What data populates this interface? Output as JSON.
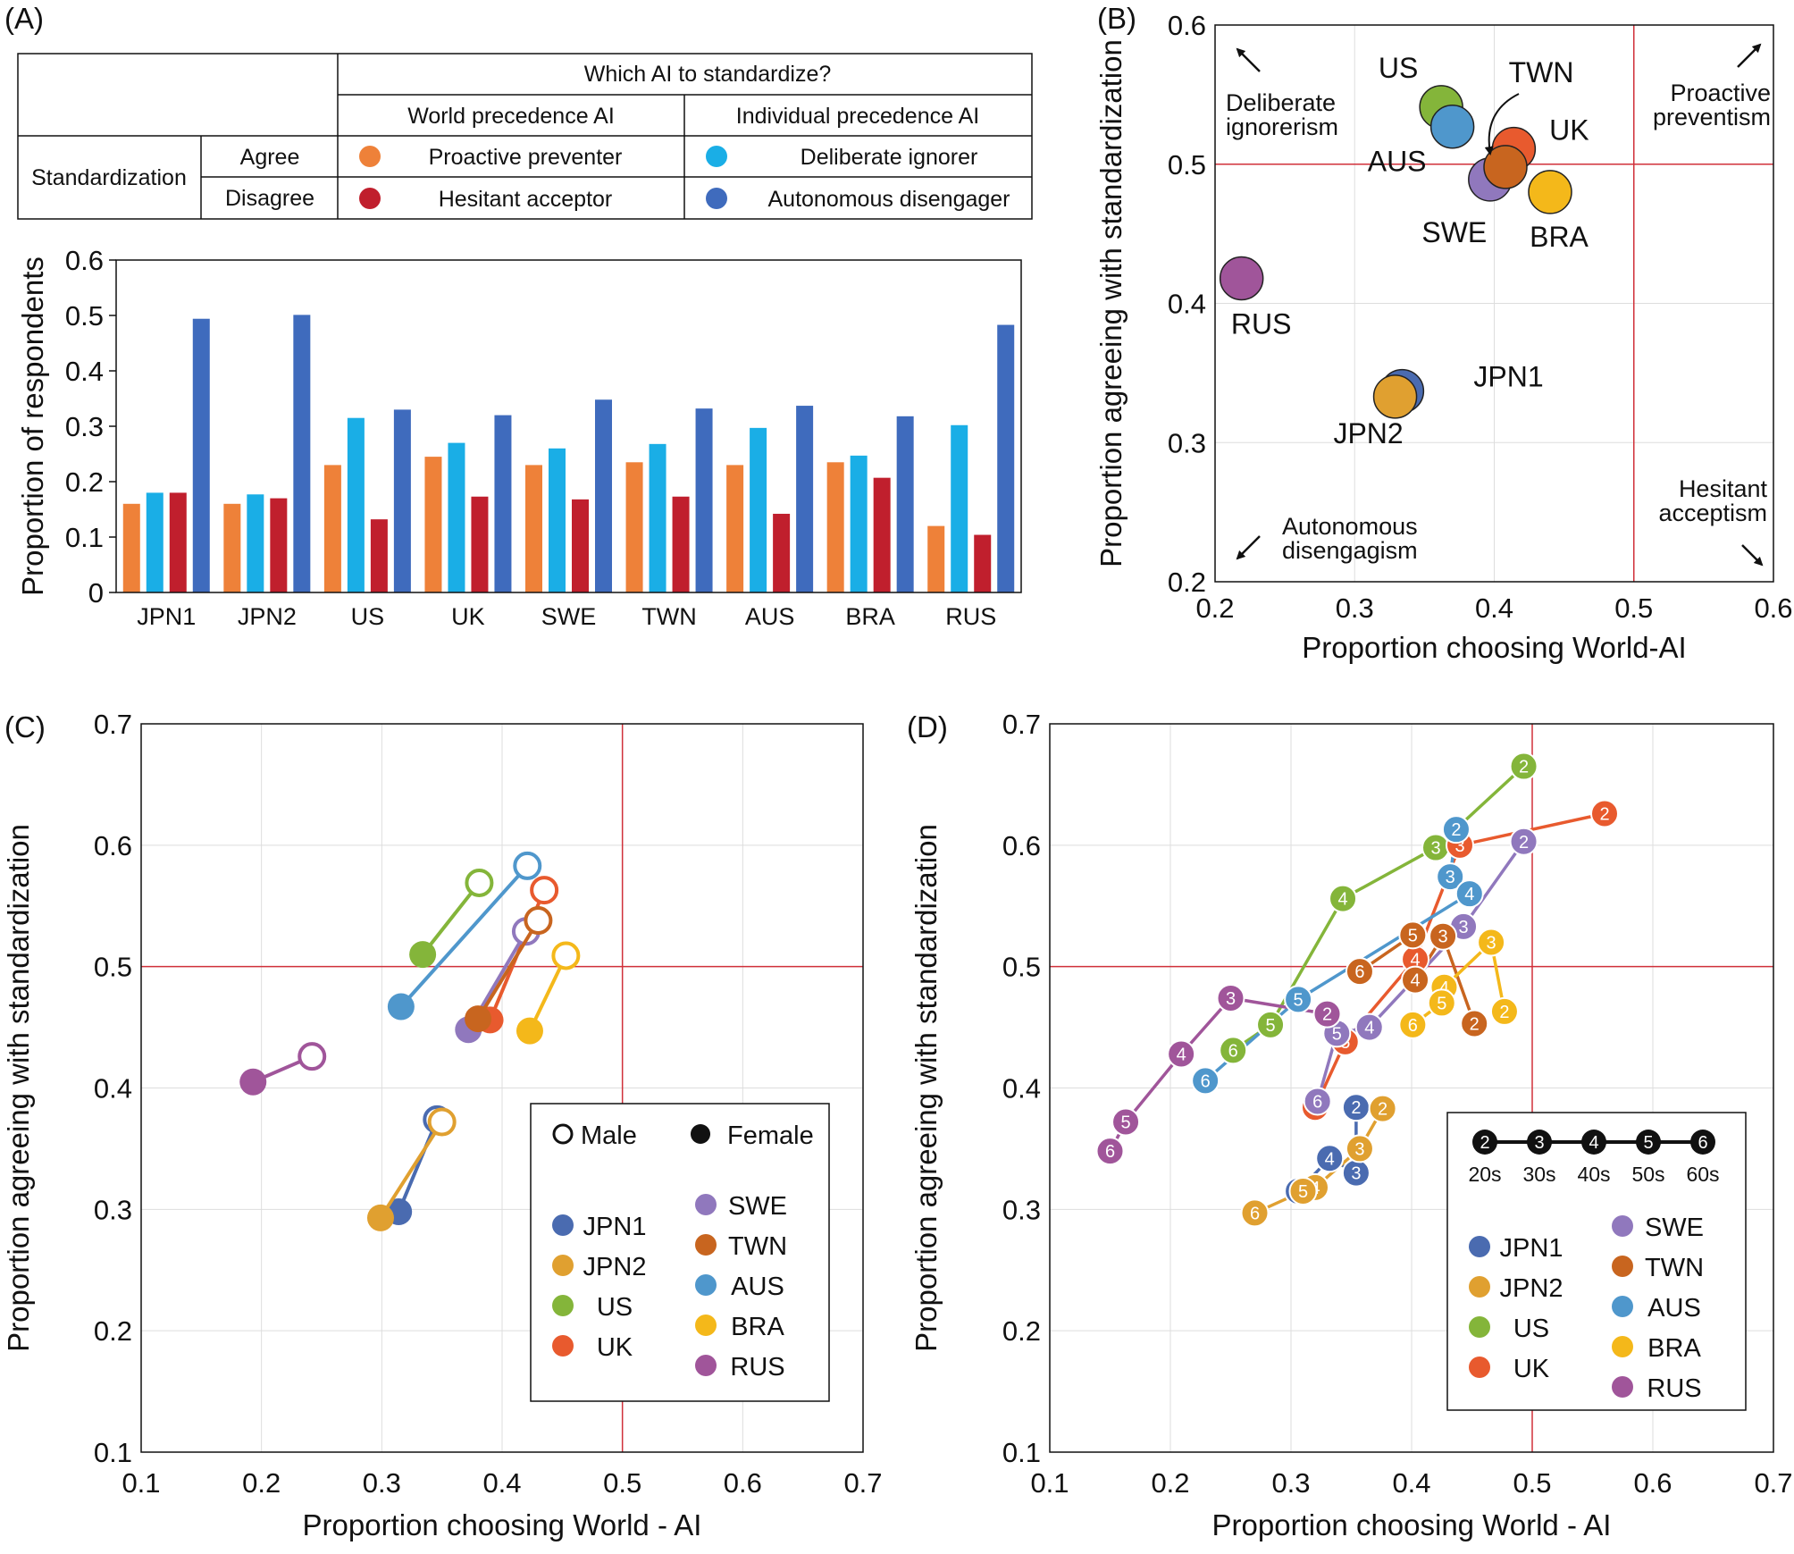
{
  "colors": {
    "JPN1": "#4a6bb0",
    "JPN2": "#e0a030",
    "US": "#84b53a",
    "UK": "#e85a2e",
    "SWE": "#9078bd",
    "TWN": "#c8651f",
    "AUS": "#4f97cc",
    "BRA": "#f4b81a",
    "RUS": "#a0559a",
    "proactive": "#ee8139",
    "deliberate": "#1aaee6",
    "hesitant": "#c01f2d",
    "autonomous": "#3f6bbd",
    "refline": "#d0303a"
  },
  "panel_labels": [
    "(A)",
    "(B)",
    "(C)",
    "(D)"
  ],
  "table": {
    "top_header": "Which AI to standardize?",
    "col_world": "World precedence AI",
    "col_individual": "Individual precedence AI",
    "row_group": "Standardization",
    "row_agree": "Agree",
    "row_disagree": "Disagree",
    "cells": {
      "proactive": "Proactive preventer",
      "deliberate": "Deliberate ignorer",
      "hesitant": "Hesitant acceptor",
      "autonomous": "Autonomous disengager"
    }
  },
  "chart_data": [
    {
      "panel": "A",
      "type": "bar",
      "ylabel": "Proportion of respondents",
      "xlabel": "",
      "ylim": [
        0,
        0.6
      ],
      "yticks": [
        "0",
        "0.1",
        "0.2",
        "0.3",
        "0.4",
        "0.5",
        "0.6"
      ],
      "categories": [
        "JPN1",
        "JPN2",
        "US",
        "UK",
        "SWE",
        "TWN",
        "AUS",
        "BRA",
        "RUS"
      ],
      "series": [
        {
          "name": "Proactive preventer",
          "color_key": "proactive",
          "values": [
            0.16,
            0.16,
            0.23,
            0.245,
            0.23,
            0.235,
            0.23,
            0.235,
            0.12
          ]
        },
        {
          "name": "Deliberate ignorer",
          "color_key": "deliberate",
          "values": [
            0.18,
            0.177,
            0.315,
            0.27,
            0.26,
            0.268,
            0.297,
            0.247,
            0.302
          ]
        },
        {
          "name": "Hesitant acceptor",
          "color_key": "hesitant",
          "values": [
            0.18,
            0.17,
            0.132,
            0.173,
            0.168,
            0.173,
            0.142,
            0.207,
            0.104
          ]
        },
        {
          "name": "Autonomous disengager",
          "color_key": "autonomous",
          "values": [
            0.494,
            0.501,
            0.33,
            0.32,
            0.348,
            0.332,
            0.337,
            0.318,
            0.483
          ]
        }
      ]
    },
    {
      "panel": "B",
      "type": "scatter",
      "xlabel": "Proportion choosing World-AI",
      "ylabel": "Proportion agreeing with standardization",
      "xlim": [
        0.2,
        0.6
      ],
      "ylim": [
        0.2,
        0.6
      ],
      "xticks": [
        "0.2",
        "0.3",
        "0.4",
        "0.5",
        "0.6"
      ],
      "yticks": [
        "0.2",
        "0.3",
        "0.4",
        "0.5",
        "0.6"
      ],
      "ref_lines": {
        "x": 0.5,
        "y": 0.5
      },
      "points": [
        {
          "label": "JPN1",
          "x": 0.334,
          "y": 0.337
        },
        {
          "label": "JPN2",
          "x": 0.329,
          "y": 0.333
        },
        {
          "label": "US",
          "x": 0.362,
          "y": 0.541
        },
        {
          "label": "AUS",
          "x": 0.37,
          "y": 0.527
        },
        {
          "label": "SWE",
          "x": 0.397,
          "y": 0.489
        },
        {
          "label": "UK",
          "x": 0.414,
          "y": 0.511
        },
        {
          "label": "TWN",
          "x": 0.408,
          "y": 0.498
        },
        {
          "label": "BRA",
          "x": 0.44,
          "y": 0.48
        },
        {
          "label": "RUS",
          "x": 0.219,
          "y": 0.418
        }
      ],
      "corner_labels": {
        "top_left": [
          "Deliberate",
          "ignorerism"
        ],
        "top_right": [
          "Proactive",
          "preventism"
        ],
        "bottom_left": [
          "Autonomous",
          "disengagism"
        ],
        "bottom_right": [
          "Hesitant",
          "acceptism"
        ]
      }
    },
    {
      "panel": "C",
      "type": "scatter",
      "xlabel": "Proportion choosing World - AI",
      "ylabel": "Proportion agreeing with standardization",
      "xlim": [
        0.1,
        0.7
      ],
      "ylim": [
        0.1,
        0.7
      ],
      "xticks": [
        "0.1",
        "0.2",
        "0.3",
        "0.4",
        "0.5",
        "0.6",
        "0.7"
      ],
      "yticks": [
        "0.1",
        "0.2",
        "0.3",
        "0.4",
        "0.5",
        "0.6",
        "0.7"
      ],
      "ref_lines": {
        "x": 0.5,
        "y": 0.5
      },
      "legend": {
        "male": "Male",
        "female": "Female"
      },
      "series": [
        {
          "name": "JPN1",
          "male": [
            0.346,
            0.374
          ],
          "female": [
            0.314,
            0.298
          ]
        },
        {
          "name": "JPN2",
          "male": [
            0.35,
            0.372
          ],
          "female": [
            0.299,
            0.293
          ]
        },
        {
          "name": "US",
          "male": [
            0.381,
            0.569
          ],
          "female": [
            0.334,
            0.51
          ]
        },
        {
          "name": "UK",
          "male": [
            0.435,
            0.563
          ],
          "female": [
            0.39,
            0.456
          ]
        },
        {
          "name": "SWE",
          "male": [
            0.42,
            0.529
          ],
          "female": [
            0.372,
            0.448
          ]
        },
        {
          "name": "TWN",
          "male": [
            0.43,
            0.538
          ],
          "female": [
            0.38,
            0.457
          ]
        },
        {
          "name": "AUS",
          "male": [
            0.421,
            0.583
          ],
          "female": [
            0.316,
            0.467
          ]
        },
        {
          "name": "BRA",
          "male": [
            0.453,
            0.509
          ],
          "female": [
            0.423,
            0.447
          ]
        },
        {
          "name": "RUS",
          "male": [
            0.242,
            0.426
          ],
          "female": [
            0.193,
            0.405
          ]
        }
      ]
    },
    {
      "panel": "D",
      "type": "line",
      "xlabel": "Proportion choosing World - AI",
      "ylabel": "Proportion agreeing with standardization",
      "xlim": [
        0.1,
        0.7
      ],
      "ylim": [
        0.1,
        0.7
      ],
      "xticks": [
        "0.1",
        "0.2",
        "0.3",
        "0.4",
        "0.5",
        "0.6",
        "0.7"
      ],
      "yticks": [
        "0.1",
        "0.2",
        "0.3",
        "0.4",
        "0.5",
        "0.6",
        "0.7"
      ],
      "ref_lines": {
        "x": 0.5,
        "y": 0.5
      },
      "age_legend": {
        "digits": [
          "2",
          "3",
          "4",
          "5",
          "6"
        ],
        "labels": [
          "20s",
          "30s",
          "40s",
          "50s",
          "60s"
        ]
      },
      "series": [
        {
          "name": "JPN1",
          "points": [
            {
              "age": "2",
              "x": 0.354,
              "y": 0.384
            },
            {
              "age": "3",
              "x": 0.354,
              "y": 0.33
            },
            {
              "age": "4",
              "x": 0.332,
              "y": 0.342
            },
            {
              "age": "5",
              "x": 0.307,
              "y": 0.316
            },
            {
              "age": "6",
              "x": 0.306,
              "y": 0.315
            }
          ]
        },
        {
          "name": "JPN2",
          "points": [
            {
              "age": "2",
              "x": 0.376,
              "y": 0.383
            },
            {
              "age": "3",
              "x": 0.357,
              "y": 0.35
            },
            {
              "age": "4",
              "x": 0.32,
              "y": 0.318
            },
            {
              "age": "5",
              "x": 0.31,
              "y": 0.315
            },
            {
              "age": "6",
              "x": 0.27,
              "y": 0.297
            }
          ]
        },
        {
          "name": "US",
          "points": [
            {
              "age": "2",
              "x": 0.493,
              "y": 0.665
            },
            {
              "age": "3",
              "x": 0.42,
              "y": 0.598
            },
            {
              "age": "4",
              "x": 0.343,
              "y": 0.556
            },
            {
              "age": "5",
              "x": 0.283,
              "y": 0.452
            },
            {
              "age": "6",
              "x": 0.252,
              "y": 0.431
            }
          ]
        },
        {
          "name": "UK",
          "points": [
            {
              "age": "2",
              "x": 0.56,
              "y": 0.626
            },
            {
              "age": "3",
              "x": 0.44,
              "y": 0.6
            },
            {
              "age": "4",
              "x": 0.403,
              "y": 0.506
            },
            {
              "age": "5",
              "x": 0.345,
              "y": 0.438
            },
            {
              "age": "6",
              "x": 0.32,
              "y": 0.384
            }
          ]
        },
        {
          "name": "SWE",
          "points": [
            {
              "age": "2",
              "x": 0.493,
              "y": 0.603
            },
            {
              "age": "3",
              "x": 0.443,
              "y": 0.533
            },
            {
              "age": "4",
              "x": 0.365,
              "y": 0.45
            },
            {
              "age": "5",
              "x": 0.338,
              "y": 0.445
            },
            {
              "age": "6",
              "x": 0.322,
              "y": 0.389
            }
          ]
        },
        {
          "name": "TWN",
          "points": [
            {
              "age": "2",
              "x": 0.452,
              "y": 0.453
            },
            {
              "age": "3",
              "x": 0.426,
              "y": 0.525
            },
            {
              "age": "4",
              "x": 0.403,
              "y": 0.489
            },
            {
              "age": "5",
              "x": 0.401,
              "y": 0.526
            },
            {
              "age": "6",
              "x": 0.357,
              "y": 0.496
            }
          ]
        },
        {
          "name": "AUS",
          "points": [
            {
              "age": "2",
              "x": 0.437,
              "y": 0.613
            },
            {
              "age": "3",
              "x": 0.432,
              "y": 0.574
            },
            {
              "age": "4",
              "x": 0.448,
              "y": 0.56
            },
            {
              "age": "5",
              "x": 0.306,
              "y": 0.473
            },
            {
              "age": "6",
              "x": 0.229,
              "y": 0.406
            }
          ]
        },
        {
          "name": "BRA",
          "points": [
            {
              "age": "2",
              "x": 0.477,
              "y": 0.463
            },
            {
              "age": "3",
              "x": 0.466,
              "y": 0.52
            },
            {
              "age": "4",
              "x": 0.427,
              "y": 0.483
            },
            {
              "age": "5",
              "x": 0.425,
              "y": 0.47
            },
            {
              "age": "6",
              "x": 0.401,
              "y": 0.452
            }
          ]
        },
        {
          "name": "RUS",
          "points": [
            {
              "age": "2",
              "x": 0.33,
              "y": 0.461
            },
            {
              "age": "3",
              "x": 0.25,
              "y": 0.474
            },
            {
              "age": "4",
              "x": 0.209,
              "y": 0.428
            },
            {
              "age": "5",
              "x": 0.163,
              "y": 0.372
            },
            {
              "age": "6",
              "x": 0.15,
              "y": 0.348
            }
          ]
        }
      ]
    }
  ]
}
